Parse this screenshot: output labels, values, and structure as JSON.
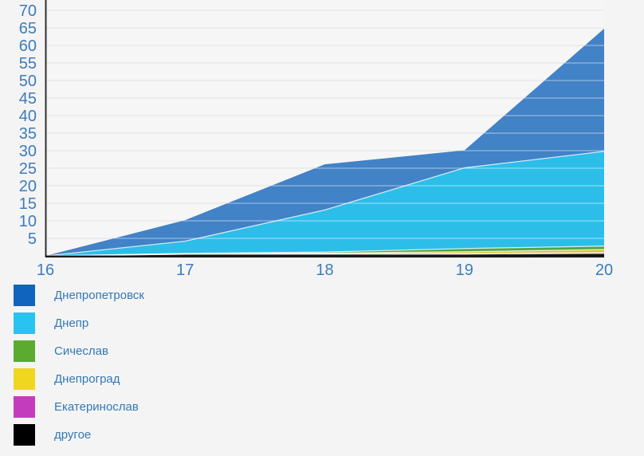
{
  "chart_data": {
    "type": "area",
    "stacked": true,
    "title": "",
    "xlabel": "",
    "ylabel": "",
    "categories": [
      "16",
      "17",
      "18",
      "19",
      "20"
    ],
    "y_ticks": [
      5,
      10,
      15,
      20,
      25,
      30,
      35,
      40,
      45,
      50,
      55,
      60,
      65,
      70
    ],
    "ylim": [
      0,
      73
    ],
    "grid": true,
    "legend_position": "bottom-left",
    "series": [
      {
        "name": "Днепропетровск",
        "color": "#1064BE",
        "fill": "#4282C6",
        "values": [
          0,
          6,
          13,
          5,
          35
        ]
      },
      {
        "name": "Днепр",
        "color": "#29C3EF",
        "fill": "#2CBEE9",
        "values": [
          0,
          3.5,
          12,
          23,
          27
        ]
      },
      {
        "name": "Сичеслав",
        "color": "#5BAB31",
        "fill": "#54A447",
        "values": [
          0,
          0.1,
          0.3,
          0.9,
          1.0
        ]
      },
      {
        "name": "Днепроград",
        "color": "#F0D61E",
        "fill": "#D6C51F",
        "values": [
          0,
          0.1,
          0.2,
          0.5,
          0.8
        ]
      },
      {
        "name": "Екатеринослав",
        "color": "#C43CBE",
        "fill": "#C43CBE",
        "values": [
          0,
          0,
          0.1,
          0.2,
          0.3
        ]
      },
      {
        "name": "другое",
        "color": "#000000",
        "fill": "#0A0A05",
        "values": [
          0,
          0.5,
          0.5,
          0.5,
          0.7
        ]
      }
    ],
    "colors": {
      "page_background": "#f4f4f4",
      "plot_background": "#f6f6f6",
      "gridline": "#e3e3e3",
      "gridline_over_area": "rgba(255,255,255,0.55)",
      "axis_line": "#2e2e2e",
      "baseline": "#1c1c1c",
      "tick_label": "#3d7cba",
      "legend_text": "#3478b8"
    }
  }
}
